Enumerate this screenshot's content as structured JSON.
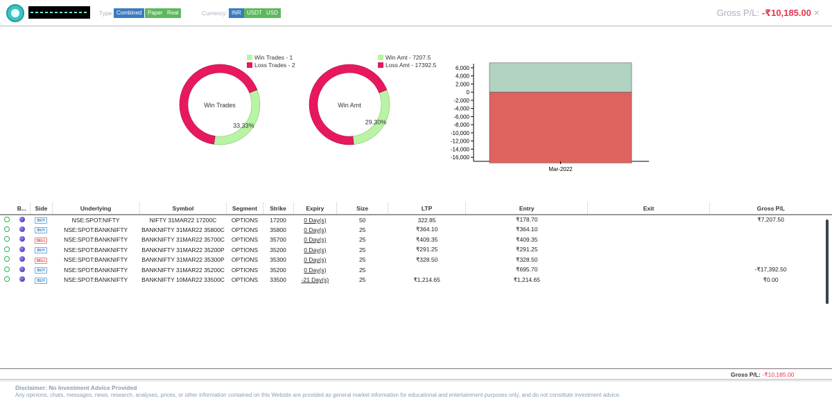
{
  "header": {
    "type_label": "Type:",
    "type_options": [
      "Combined",
      "Paper",
      "Real"
    ],
    "currency_label": "Currency:",
    "currency_options": [
      "INR",
      "USDT",
      "USD"
    ],
    "gross_label": "Gross P/L:",
    "gross_value": "-₹10,185.00",
    "close_symbol": "×"
  },
  "colors": {
    "win": "#b9f3a5",
    "loss": "#e8185f",
    "bar_win": "#b2d3c2",
    "bar_loss": "#de635e",
    "red_text": "#e8344e"
  },
  "chart_data": [
    {
      "type": "pie",
      "center_label": "Win Trades",
      "slice_label": "33.33%",
      "labels": [
        "Win Trades - 1",
        "Loss Trades - 2"
      ],
      "values": [
        1,
        2
      ]
    },
    {
      "type": "pie",
      "center_label": "Win Amt",
      "slice_label": "29.30%",
      "labels": [
        "Win Amt - 7207.5",
        "Loss Amt - 17392.5"
      ],
      "values": [
        7207.5,
        17392.5
      ]
    },
    {
      "type": "bar",
      "categories": [
        "Mar-2022"
      ],
      "series": [
        {
          "values": [
            7207.5
          ]
        },
        {
          "values": [
            -17392.5
          ]
        }
      ],
      "ylim": [
        -17000,
        7000
      ],
      "yticks": [
        "6,000",
        "4,000",
        "2,000",
        "0",
        "-2,000",
        "-4,000",
        "-6,000",
        "-8,000",
        "-10,000",
        "-12,000",
        "-14,000",
        "-16,000"
      ],
      "ytick_values": [
        6000,
        4000,
        2000,
        0,
        -2000,
        -4000,
        -6000,
        -8000,
        -10000,
        -12000,
        -14000,
        -16000
      ]
    }
  ],
  "table": {
    "columns": [
      "B...",
      "Side",
      "Underlying",
      "Symbol",
      "Segment",
      "Strike",
      "Expiry",
      "Size",
      "LTP",
      "Entry",
      "Exit",
      "Gross P/L"
    ],
    "rows": [
      {
        "side": "BUY",
        "underlying": "NSE:SPOT:NIFTY",
        "symbol": "NIFTY 31MAR22 17200C",
        "segment": "OPTIONS",
        "strike": "17200",
        "expiry": "0 Day(s)",
        "size": "50",
        "ltp": "322.85",
        "entry": "₹178.70",
        "exit": "",
        "gross": "₹7,207.50"
      },
      {
        "side": "BUY",
        "underlying": "NSE:SPOT:BANKNIFTY",
        "symbol": "BANKNIFTY 31MAR22 35800C",
        "segment": "OPTIONS",
        "strike": "35800",
        "expiry": "0 Day(s)",
        "size": "25",
        "ltp": "₹364.10",
        "entry": "₹364.10",
        "exit": "",
        "gross": ""
      },
      {
        "side": "SELL",
        "underlying": "NSE:SPOT:BANKNIFTY",
        "symbol": "BANKNIFTY 31MAR22 35700C",
        "segment": "OPTIONS",
        "strike": "35700",
        "expiry": "0 Day(s)",
        "size": "25",
        "ltp": "₹409.35",
        "entry": "₹409.35",
        "exit": "",
        "gross": ""
      },
      {
        "side": "BUY",
        "underlying": "NSE:SPOT:BANKNIFTY",
        "symbol": "BANKNIFTY 31MAR22 35200P",
        "segment": "OPTIONS",
        "strike": "35200",
        "expiry": "0 Day(s)",
        "size": "25",
        "ltp": "₹291.25",
        "entry": "₹291.25",
        "exit": "",
        "gross": ""
      },
      {
        "side": "SELL",
        "underlying": "NSE:SPOT:BANKNIFTY",
        "symbol": "BANKNIFTY 31MAR22 35300P",
        "segment": "OPTIONS",
        "strike": "35300",
        "expiry": "0 Day(s)",
        "size": "25",
        "ltp": "₹328.50",
        "entry": "₹328.50",
        "exit": "",
        "gross": ""
      },
      {
        "side": "BUY",
        "underlying": "NSE:SPOT:BANKNIFTY",
        "symbol": "BANKNIFTY 31MAR22 35200C",
        "segment": "OPTIONS",
        "strike": "35200",
        "expiry": "0 Day(s)",
        "size": "25",
        "ltp": "",
        "entry": "₹695.70",
        "exit": "",
        "gross": "-₹17,392.50"
      },
      {
        "side": "BUY",
        "underlying": "NSE:SPOT:BANKNIFTY",
        "symbol": "BANKNIFTY 10MAR22 33500C",
        "segment": "OPTIONS",
        "strike": "33500",
        "expiry": "-21 Day(s)",
        "size": "25",
        "ltp": "₹1,214.65",
        "entry": "₹1,214.65",
        "exit": "",
        "gross": "₹0.00"
      }
    ]
  },
  "footer": {
    "gross_label": "Gross P/L:",
    "gross_value": "-₹10,185.00",
    "disclaimer_title": "Disclaimer: No Investment Advice Provided",
    "disclaimer_text": "Any opinions, chats, messages, news, research, analyses, prices, or other information contained on this Website are provided as general market information for educational and entertainment purposes only, and do not constitute investment advice."
  }
}
